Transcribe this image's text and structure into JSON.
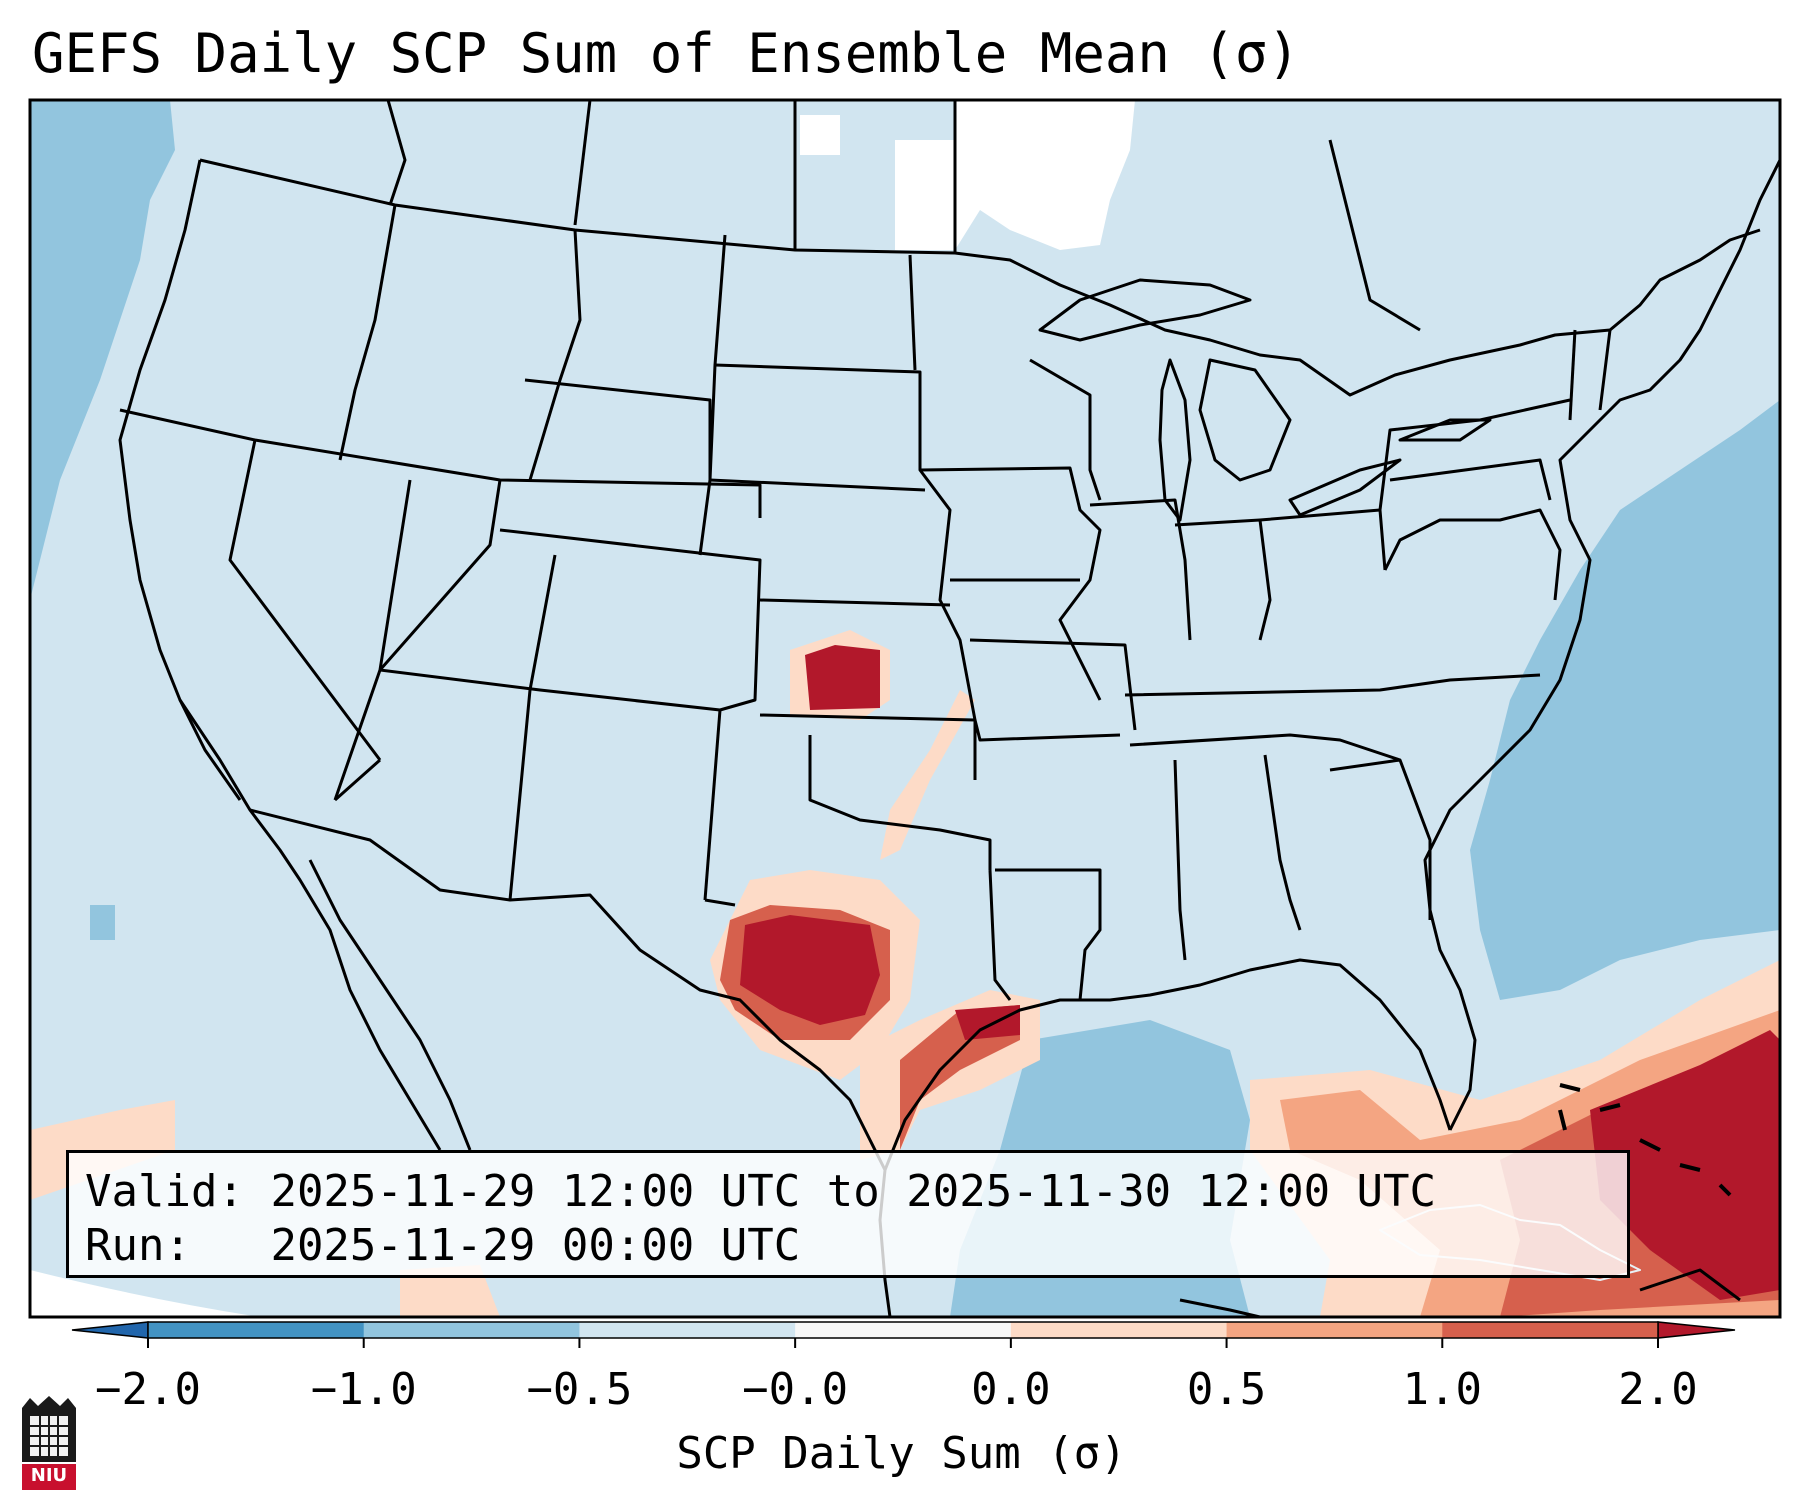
{
  "title": "GEFS Daily SCP Sum of Ensemble Mean (σ)",
  "legend": {
    "valid_label": "Valid:",
    "valid_value": "2025-11-29 12:00 UTC to 2025-11-30 12:00 UTC",
    "run_label": "Run:",
    "run_value": "2025-11-29 00:00 UTC"
  },
  "colorbar": {
    "label": "SCP Daily Sum (σ)",
    "ticks": [
      "−2.0",
      "−1.0",
      "−0.5",
      "−0.0",
      "0.0",
      "0.5",
      "1.0",
      "2.0"
    ],
    "bin_colors": [
      "#4393c3",
      "#92c5de",
      "#d1e5f0",
      "#f7f7f7",
      "#fddbc7",
      "#f4a582",
      "#d6604d"
    ],
    "under_color": "#2166ac",
    "over_color": "#b2182b"
  },
  "map": {
    "field_colors": {
      "background": "#d1e5f0",
      "ocean_negative": "#92c5de",
      "missing": "#ffffff",
      "weak_positive": "#fddbc7",
      "moderate_positive": "#f4a582",
      "strong_positive": "#d6604d",
      "extreme_positive": "#b2182b"
    },
    "border_color": "#000000"
  },
  "logo": {
    "text": "NIU",
    "color": "#c8102e"
  }
}
